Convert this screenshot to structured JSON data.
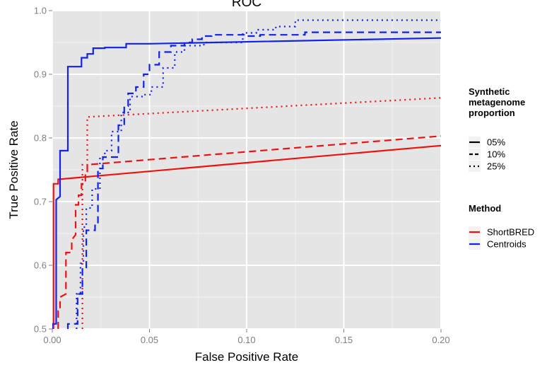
{
  "chart_data": {
    "type": "line",
    "title": "ROC",
    "xlabel": "False Positive Rate",
    "ylabel": "True Positive Rate",
    "xlim": [
      0,
      0.2
    ],
    "ylim": [
      0.5,
      1.0
    ],
    "x_ticks": [
      "0.00",
      "0.05",
      "0.10",
      "0.15",
      "0.20"
    ],
    "x_tick_values": [
      0,
      0.05,
      0.1,
      0.15,
      0.2
    ],
    "y_ticks": [
      "0.5",
      "0.6",
      "0.7",
      "0.8",
      "0.9",
      "1.0"
    ],
    "y_tick_values": [
      0.5,
      0.6,
      0.7,
      0.8,
      0.9,
      1.0
    ],
    "grid": true,
    "legend_position": "right",
    "legend": {
      "linetype_title": "Synthetic\nmetagenome\nproportion",
      "linetype_items": [
        {
          "label": "05%",
          "dash": "solid"
        },
        {
          "label": "10%",
          "dash": "dashed"
        },
        {
          "label": "25%",
          "dash": "dotted"
        }
      ],
      "method_title": "Method",
      "method_items": [
        {
          "label": "ShortBRED",
          "color": "#ee1111"
        },
        {
          "label": "Centroids",
          "color": "#1122ee"
        }
      ]
    },
    "series": [
      {
        "method": "ShortBRED",
        "proportion": "05%",
        "color": "#ee1111",
        "dash": "solid",
        "x": [
          0.0,
          0.0006,
          0.0006,
          0.003,
          0.003,
          0.2
        ],
        "y": [
          0.5,
          0.5,
          0.728,
          0.728,
          0.735,
          0.788
        ]
      },
      {
        "method": "ShortBRED",
        "proportion": "10%",
        "color": "#ee1111",
        "dash": "dashed",
        "x": [
          0.003,
          0.003,
          0.004,
          0.004,
          0.007,
          0.007,
          0.01,
          0.01,
          0.012,
          0.012,
          0.0135,
          0.0135,
          0.015,
          0.015,
          0.017,
          0.017,
          0.018,
          0.018,
          0.2
        ],
        "y": [
          0.5,
          0.528,
          0.528,
          0.55,
          0.555,
          0.62,
          0.62,
          0.64,
          0.648,
          0.695,
          0.695,
          0.71,
          0.71,
          0.728,
          0.728,
          0.745,
          0.745,
          0.758,
          0.803
        ]
      },
      {
        "method": "ShortBRED",
        "proportion": "25%",
        "color": "#ee1111",
        "dash": "dotted",
        "x": [
          0.0155,
          0.0155,
          0.018,
          0.018,
          0.2
        ],
        "y": [
          0.5,
          0.758,
          0.758,
          0.833,
          0.863
        ]
      },
      {
        "method": "Centroids",
        "proportion": "05%",
        "color": "#1122ee",
        "dash": "solid",
        "x": [
          0.0,
          0.0,
          0.002,
          0.002,
          0.004,
          0.004,
          0.008,
          0.008,
          0.015,
          0.015,
          0.018,
          0.018,
          0.021,
          0.021,
          0.027,
          0.027,
          0.038,
          0.038,
          0.05,
          0.2
        ],
        "y": [
          0.5,
          0.508,
          0.508,
          0.703,
          0.708,
          0.78,
          0.78,
          0.912,
          0.912,
          0.926,
          0.926,
          0.932,
          0.932,
          0.941,
          0.941,
          0.942,
          0.942,
          0.948,
          0.948,
          0.957
        ]
      },
      {
        "method": "Centroids",
        "proportion": "10%",
        "color": "#1122ee",
        "dash": "dashed",
        "x": [
          0.008,
          0.008,
          0.013,
          0.013,
          0.0155,
          0.0155,
          0.0175,
          0.0175,
          0.022,
          0.022,
          0.0235,
          0.0235,
          0.026,
          0.026,
          0.034,
          0.034,
          0.037,
          0.037,
          0.039,
          0.039,
          0.043,
          0.043,
          0.047,
          0.047,
          0.05,
          0.05,
          0.055,
          0.055,
          0.061,
          0.061,
          0.068,
          0.068,
          0.072,
          0.072,
          0.077,
          0.077,
          0.082,
          0.082,
          0.099,
          0.099,
          0.107,
          0.107,
          0.13,
          0.13,
          0.2
        ],
        "y": [
          0.5,
          0.508,
          0.508,
          0.555,
          0.555,
          0.595,
          0.595,
          0.655,
          0.655,
          0.665,
          0.665,
          0.752,
          0.752,
          0.77,
          0.77,
          0.82,
          0.82,
          0.85,
          0.85,
          0.87,
          0.87,
          0.88,
          0.88,
          0.9,
          0.9,
          0.915,
          0.915,
          0.935,
          0.935,
          0.945,
          0.945,
          0.95,
          0.95,
          0.955,
          0.955,
          0.96,
          0.96,
          0.962,
          0.962,
          0.96,
          0.96,
          0.962,
          0.962,
          0.966,
          0.966
        ]
      },
      {
        "method": "Centroids",
        "proportion": "25%",
        "color": "#1122ee",
        "dash": "dotted",
        "x": [
          0.0125,
          0.0125,
          0.0145,
          0.0145,
          0.016,
          0.016,
          0.0175,
          0.0175,
          0.0205,
          0.0205,
          0.0245,
          0.0245,
          0.027,
          0.027,
          0.0305,
          0.0305,
          0.0355,
          0.0355,
          0.04,
          0.04,
          0.047,
          0.047,
          0.051,
          0.051,
          0.057,
          0.057,
          0.063,
          0.063,
          0.068,
          0.068,
          0.078,
          0.078,
          0.098,
          0.098,
          0.105,
          0.105,
          0.115,
          0.115,
          0.125,
          0.125,
          0.2
        ],
        "y": [
          0.5,
          0.555,
          0.555,
          0.603,
          0.603,
          0.66,
          0.66,
          0.69,
          0.69,
          0.72,
          0.72,
          0.77,
          0.77,
          0.78,
          0.78,
          0.81,
          0.81,
          0.84,
          0.84,
          0.865,
          0.865,
          0.868,
          0.868,
          0.88,
          0.88,
          0.91,
          0.91,
          0.935,
          0.935,
          0.945,
          0.945,
          0.95,
          0.95,
          0.965,
          0.965,
          0.97,
          0.97,
          0.975,
          0.975,
          0.985,
          0.985
        ]
      }
    ]
  }
}
